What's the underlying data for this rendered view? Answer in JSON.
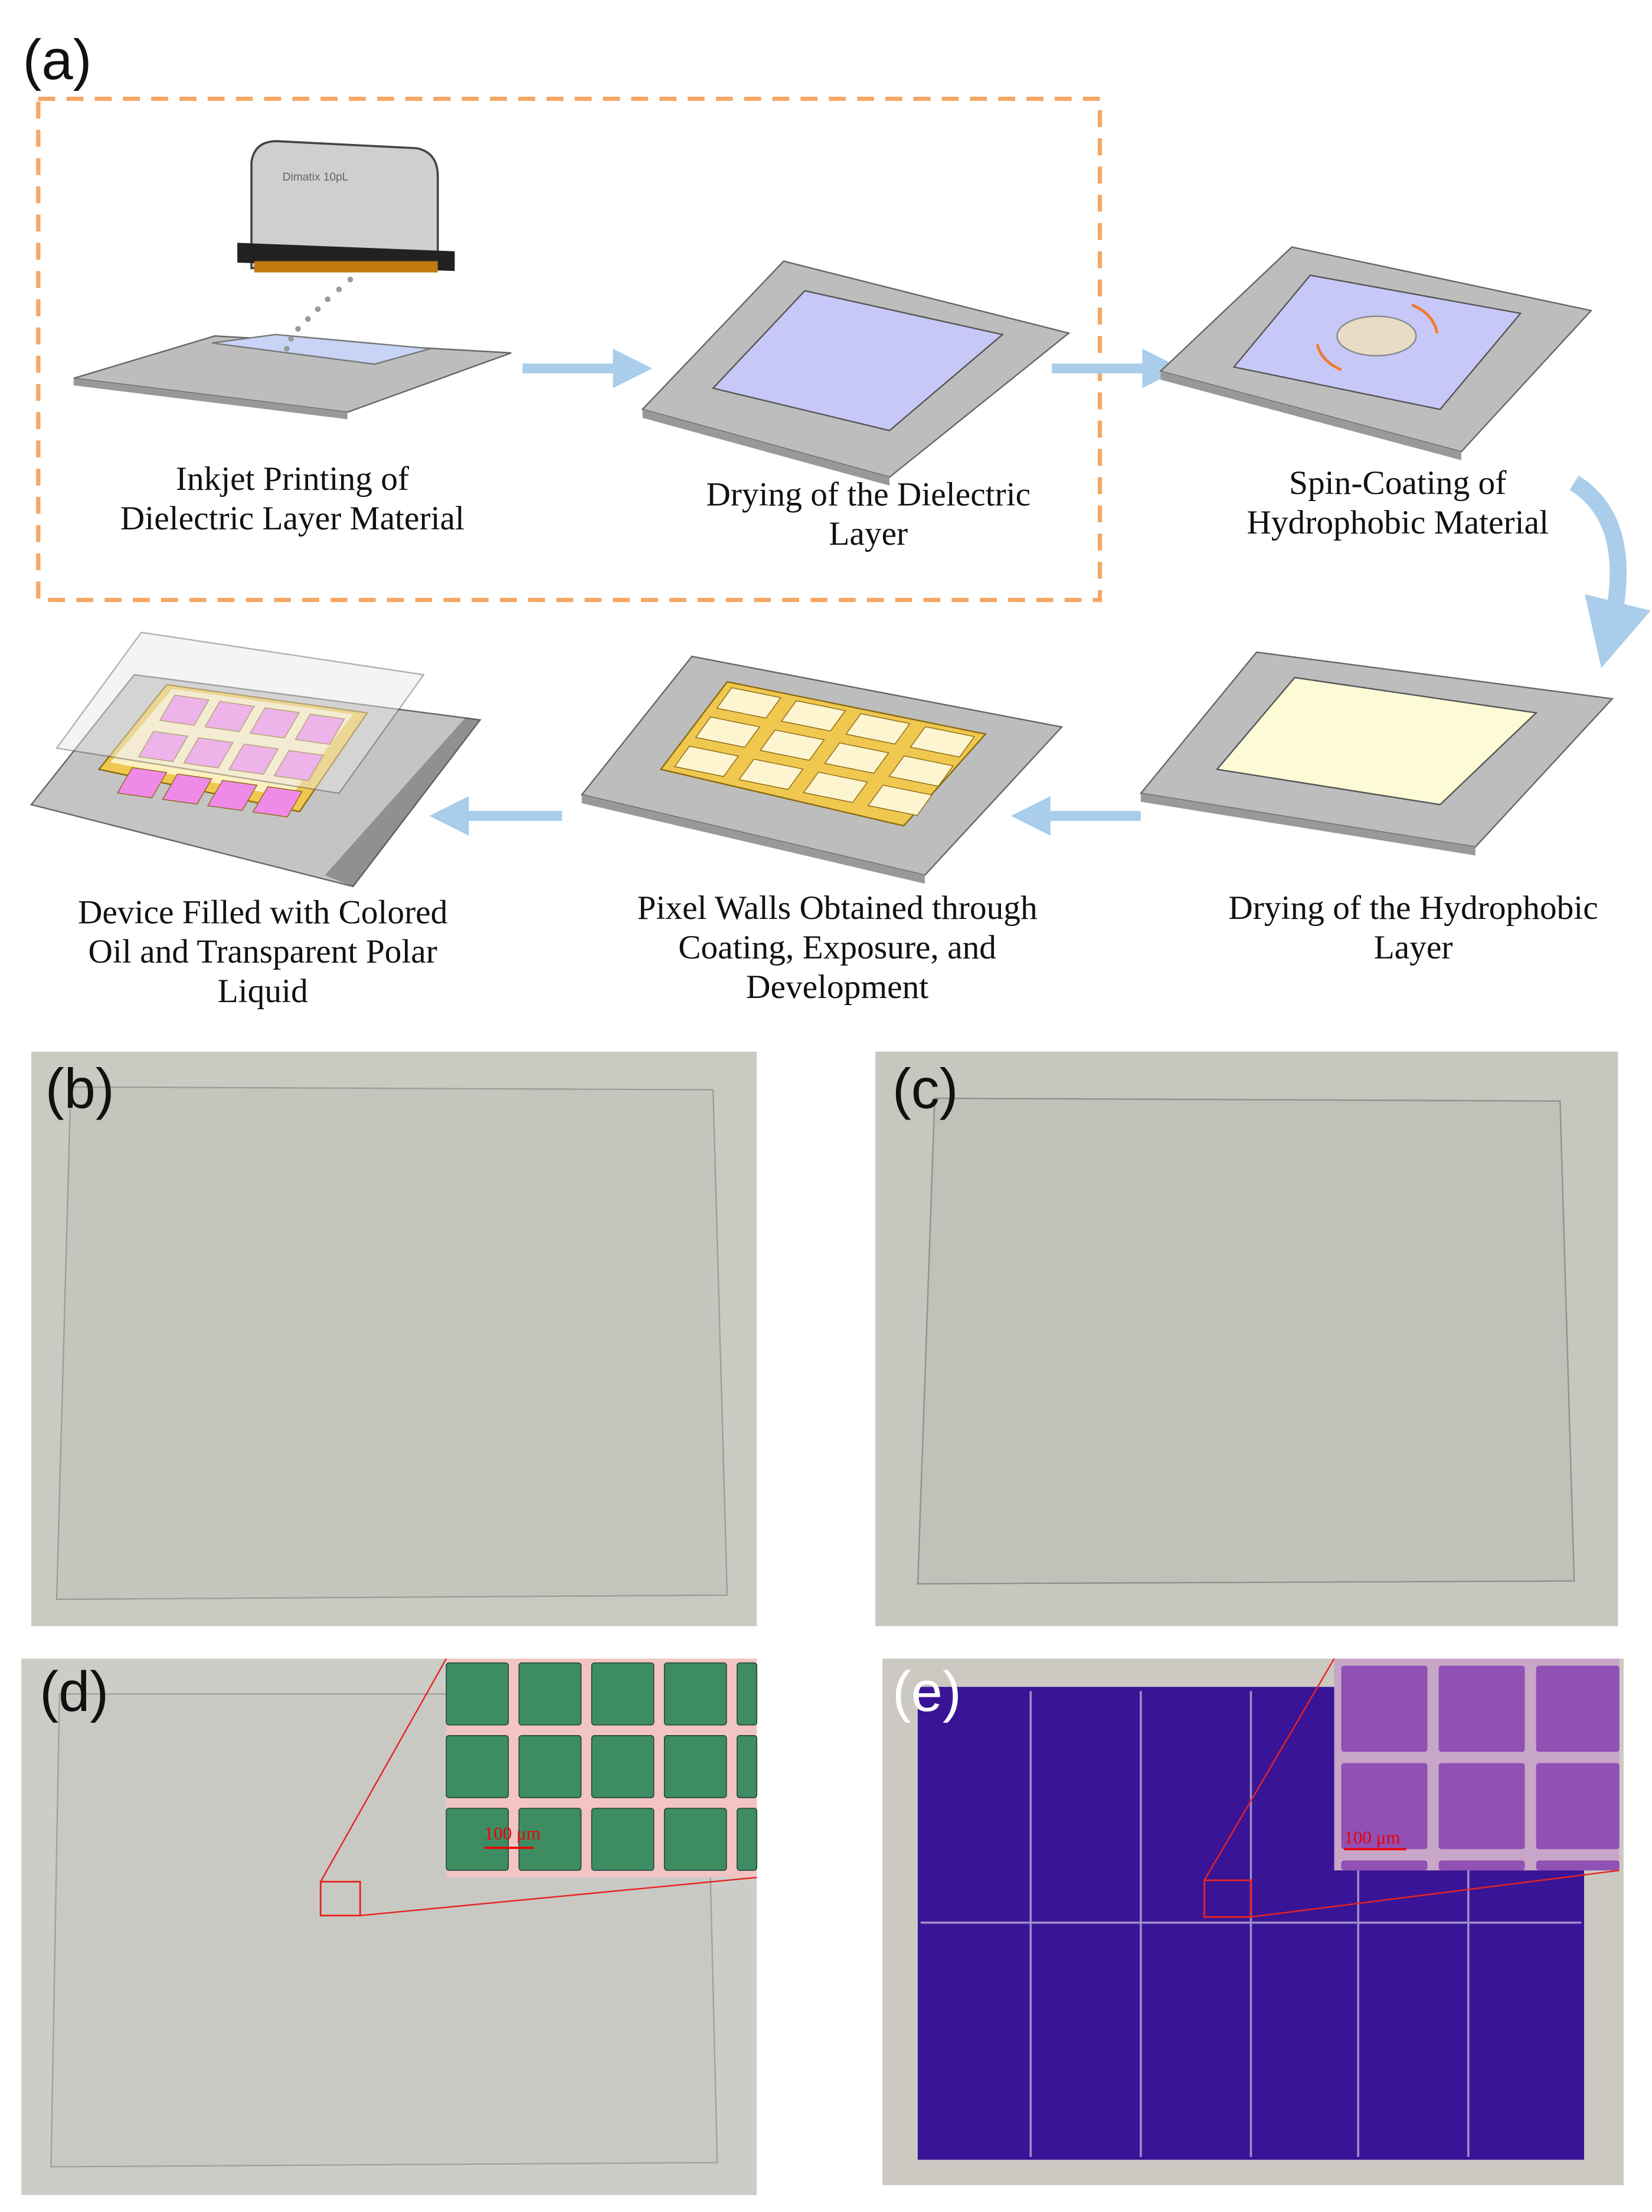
{
  "panels": {
    "a": "(a)",
    "b": "(b)",
    "c": "(c)",
    "d": "(d)",
    "e": "(e)"
  },
  "steps": [
    {
      "lines": [
        "Inkjet Printing of",
        "Dielectric Layer Material"
      ]
    },
    {
      "lines": [
        "Drying of the Dielectric",
        "Layer"
      ]
    },
    {
      "lines": [
        "Spin-Coating of",
        "Hydrophobic Material"
      ]
    },
    {
      "lines": [
        "Drying of the Hydrophobic",
        "Layer"
      ]
    },
    {
      "lines": [
        "Pixel Walls Obtained through",
        "Coating, Exposure, and",
        "Development"
      ]
    },
    {
      "lines": [
        "Device Filled with Colored",
        "Oil and Transparent Polar",
        "Liquid"
      ]
    }
  ],
  "printhead_label": "Dimatix 10pL",
  "scale_bars": {
    "d": "100 μm",
    "e": "100 μm"
  },
  "colors": {
    "dashed_box": "#f5a765",
    "arrow": "#a9cdea",
    "dielectric": "#c7c8f7",
    "hydrophobic": "#fdfbd6",
    "pixel_wall": "#f0c850",
    "oil": "#f08ae8",
    "inset_green": "#3e8c62",
    "device_purple": "#3a1496",
    "annotation": "#e8231f"
  }
}
